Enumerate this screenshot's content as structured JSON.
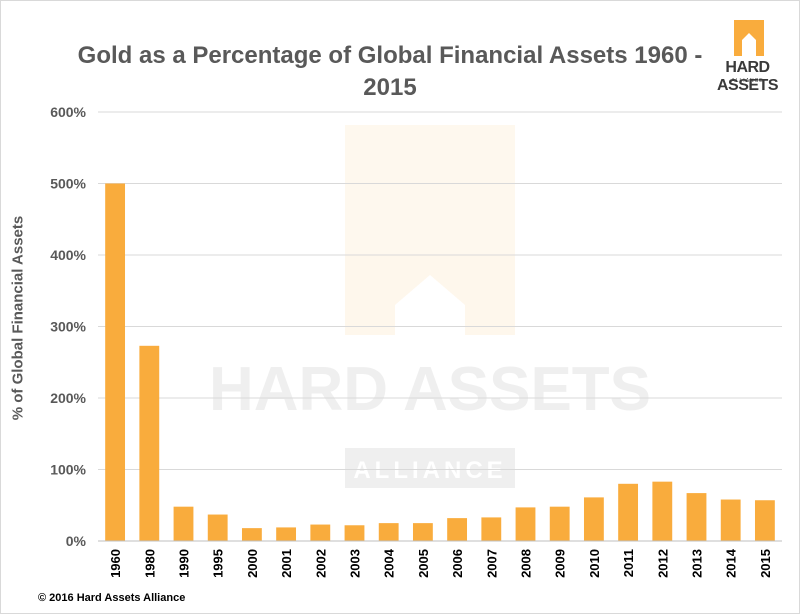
{
  "chart_data": {
    "type": "bar",
    "title": "Gold as a Percentage of Global Financial Assets 1960 - 2015",
    "title_lines": [
      "Gold as a Percentage of Global Financial Assets 1960 -",
      "2015"
    ],
    "ylabel": "% of Global Financial Assets",
    "xlabel": "",
    "ylim": [
      0,
      600
    ],
    "yticks": [
      "0%",
      "100%",
      "200%",
      "300%",
      "400%",
      "500%",
      "600%"
    ],
    "ytick_values": [
      0,
      100,
      200,
      300,
      400,
      500,
      600
    ],
    "grid": true,
    "categories": [
      "1960",
      "1980",
      "1990",
      "1995",
      "2000",
      "2001",
      "2002",
      "2003",
      "2004",
      "2005",
      "2006",
      "2007",
      "2008",
      "2009",
      "2010",
      "2011",
      "2012",
      "2013",
      "2014",
      "2015"
    ],
    "values": [
      500,
      273,
      48,
      37,
      18,
      19,
      23,
      22,
      25,
      25,
      32,
      33,
      47,
      48,
      61,
      80,
      83,
      67,
      58,
      57
    ],
    "bar_color": "#F9AC3D"
  },
  "logo": {
    "word": "HARD ASSETS",
    "sub": "ALLIANCE",
    "color": "#F9AC3D"
  },
  "watermark": {
    "word": "HARD ASSETS",
    "sub": "ALLIANCE"
  },
  "footer": {
    "copyright": "© 2016 Hard Assets Alliance"
  }
}
